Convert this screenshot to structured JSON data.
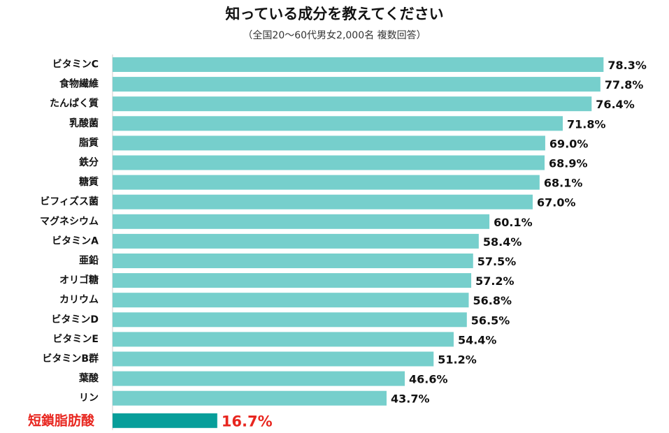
{
  "title": "知っている成分を教えてください",
  "subtitle": "（全国20～60代男女2,000名 複数回答）",
  "chart_data": {
    "type": "bar",
    "orientation": "horizontal",
    "title": "知っている成分を教えてください",
    "subtitle": "（全国20～60代男女2,000名 複数回答）",
    "xlabel": "",
    "ylabel": "",
    "xlim": [
      0,
      100
    ],
    "grid": false,
    "categories": [
      "ビタミンC",
      "食物繊維",
      "たんぱく質",
      "乳酸菌",
      "脂質",
      "鉄分",
      "糖質",
      "ビフィズス菌",
      "マグネシウム",
      "ビタミンA",
      "亜鉛",
      "オリゴ糖",
      "カリウム",
      "ビタミンD",
      "ビタミンE",
      "ビタミンB群",
      "葉酸",
      "リン",
      "短鎖脂肪酸"
    ],
    "values": [
      78.3,
      77.8,
      76.4,
      71.8,
      69.0,
      68.9,
      68.1,
      67.0,
      60.1,
      58.4,
      57.5,
      57.2,
      56.8,
      56.5,
      54.4,
      51.2,
      46.6,
      43.7,
      16.7
    ],
    "value_labels": [
      "78.3%",
      "77.8%",
      "76.4%",
      "71.8%",
      "69.0%",
      "68.9%",
      "68.1%",
      "67.0%",
      "60.1%",
      "58.4%",
      "57.5%",
      "57.2%",
      "56.8%",
      "56.5%",
      "54.4%",
      "51.2%",
      "46.6%",
      "43.7%",
      "16.7%"
    ],
    "highlight_index": 18,
    "colors": {
      "bar": "#76cfcc",
      "highlight_bar": "#079e9a",
      "highlight_text": "#e8261f",
      "axis": "#cccccc"
    }
  }
}
